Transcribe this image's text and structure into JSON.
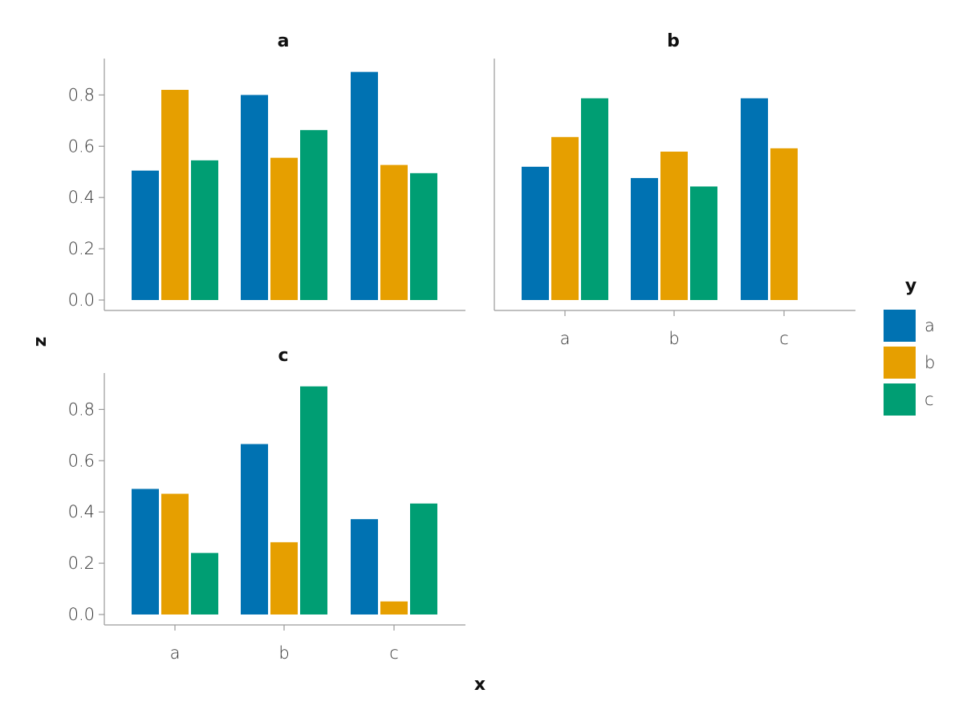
{
  "chart_data": {
    "type": "bar",
    "layout": "faceted-grouped-bar",
    "xlabel": "x",
    "ylabel": "z",
    "ylim": [
      0,
      0.9
    ],
    "yticks": [
      "0.0",
      "0.2",
      "0.4",
      "0.6",
      "0.8"
    ],
    "categories": [
      "a",
      "b",
      "c"
    ],
    "legend": {
      "title": "y",
      "placement": "right",
      "entries": [
        {
          "label": "a",
          "color": "#0072b2"
        },
        {
          "label": "b",
          "color": "#e69f00"
        },
        {
          "label": "c",
          "color": "#009e73"
        }
      ]
    },
    "panels": [
      {
        "title": "a",
        "series": [
          {
            "name": "a",
            "values": [
              0.505,
              0.8,
              0.89
            ]
          },
          {
            "name": "b",
            "values": [
              0.82,
              0.555,
              0.527
            ]
          },
          {
            "name": "c",
            "values": [
              0.545,
              0.663,
              0.495
            ]
          }
        ]
      },
      {
        "title": "b",
        "series": [
          {
            "name": "a",
            "values": [
              0.52,
              0.476,
              0.787
            ]
          },
          {
            "name": "b",
            "values": [
              0.636,
              0.579,
              0.592
            ]
          },
          {
            "name": "c",
            "values": [
              0.787,
              0.443,
              null
            ]
          }
        ]
      },
      {
        "title": "c",
        "series": [
          {
            "name": "a",
            "values": [
              0.49,
              0.665,
              0.372
            ]
          },
          {
            "name": "b",
            "values": [
              0.471,
              0.282,
              0.051
            ]
          },
          {
            "name": "c",
            "values": [
              0.24,
              0.89,
              0.433
            ]
          }
        ]
      }
    ]
  }
}
